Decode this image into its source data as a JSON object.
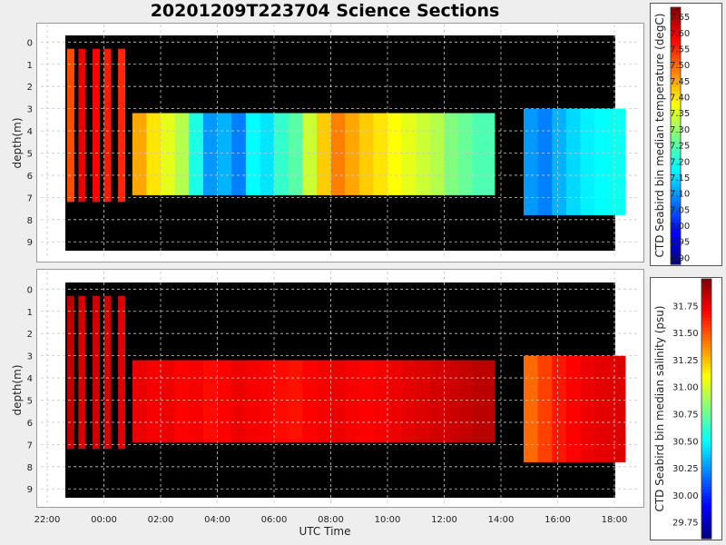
{
  "title": "20201209T223704 Science Sections",
  "xlabel": "UTC Time",
  "chart_data": [
    {
      "type": "heatmap",
      "name": "temperature-section",
      "ylabel": "depth(m)",
      "y_ticks": [
        "0",
        "1",
        "2",
        "3",
        "4",
        "5",
        "6",
        "7",
        "8",
        "9"
      ],
      "ylim": [
        9.4,
        -0.3
      ],
      "x_ticks": [
        "22:00",
        "00:00",
        "02:00",
        "04:00",
        "06:00",
        "08:00",
        "10:00",
        "12:00",
        "14:00",
        "16:00",
        "18:00"
      ],
      "xlim_hours": [
        -2.45,
        18.3
      ],
      "grid": true,
      "colorbar": {
        "label": "CTD Seabird bin median temperature (degC)",
        "min": 6.88,
        "max": 7.68,
        "ticks": [
          "6.90",
          "6.95",
          "7.00",
          "7.05",
          "7.10",
          "7.15",
          "7.20",
          "7.25",
          "7.30",
          "7.35",
          "7.40",
          "7.45",
          "7.50",
          "7.55",
          "7.60",
          "7.65"
        ],
        "tick_values": [
          6.9,
          6.95,
          7.0,
          7.05,
          7.1,
          7.15,
          7.2,
          7.25,
          7.3,
          7.35,
          7.4,
          7.45,
          7.5,
          7.55,
          7.6,
          7.65
        ]
      },
      "profiles": [
        {
          "t": -1.3,
          "value": 7.52
        },
        {
          "t": -0.9,
          "value": 7.6
        },
        {
          "t": -0.4,
          "value": 7.58
        },
        {
          "t": 0.0,
          "value": 7.56
        },
        {
          "t": 0.5,
          "value": 7.55
        },
        {
          "t": 1.0,
          "value": 7.45
        },
        {
          "t": 1.5,
          "value": 7.4
        },
        {
          "t": 2.0,
          "value": 7.36
        },
        {
          "t": 2.5,
          "value": 7.32
        },
        {
          "t": 3.0,
          "value": 7.2
        },
        {
          "t": 3.5,
          "value": 7.1
        },
        {
          "t": 4.0,
          "value": 7.12
        },
        {
          "t": 4.5,
          "value": 7.08
        },
        {
          "t": 5.0,
          "value": 7.18
        },
        {
          "t": 5.5,
          "value": 7.16
        },
        {
          "t": 6.0,
          "value": 7.22
        },
        {
          "t": 6.5,
          "value": 7.25
        },
        {
          "t": 7.0,
          "value": 7.34
        },
        {
          "t": 7.5,
          "value": 7.42
        },
        {
          "t": 8.0,
          "value": 7.48
        },
        {
          "t": 8.5,
          "value": 7.45
        },
        {
          "t": 9.0,
          "value": 7.42
        },
        {
          "t": 9.5,
          "value": 7.4
        },
        {
          "t": 10.0,
          "value": 7.38
        },
        {
          "t": 10.5,
          "value": 7.36
        },
        {
          "t": 11.0,
          "value": 7.34
        },
        {
          "t": 11.5,
          "value": 7.32
        },
        {
          "t": 12.0,
          "value": 7.28
        },
        {
          "t": 12.5,
          "value": 7.26
        },
        {
          "t": 13.0,
          "value": 7.24
        },
        {
          "t": 14.8,
          "value": 7.1
        },
        {
          "t": 15.3,
          "value": 7.08
        },
        {
          "t": 15.8,
          "value": 7.12
        },
        {
          "t": 16.3,
          "value": 7.15
        },
        {
          "t": 16.8,
          "value": 7.17
        },
        {
          "t": 17.3,
          "value": 7.18
        },
        {
          "t": 17.8,
          "value": 7.19
        }
      ]
    },
    {
      "type": "heatmap",
      "name": "salinity-section",
      "ylabel": "depth(m)",
      "y_ticks": [
        "0",
        "1",
        "2",
        "3",
        "4",
        "5",
        "6",
        "7",
        "8",
        "9"
      ],
      "ylim": [
        9.4,
        -0.3
      ],
      "x_ticks": [
        "22:00",
        "00:00",
        "02:00",
        "04:00",
        "06:00",
        "08:00",
        "10:00",
        "12:00",
        "14:00",
        "16:00",
        "18:00"
      ],
      "xlim_hours": [
        -2.45,
        18.3
      ],
      "grid": true,
      "colorbar": {
        "label": "CTD Seabird bin median salinity (psu)",
        "min": 29.6,
        "max": 32.0,
        "ticks": [
          "29.75",
          "30.00",
          "30.25",
          "30.50",
          "30.75",
          "31.00",
          "31.25",
          "31.50",
          "31.75"
        ],
        "tick_values": [
          29.75,
          30.0,
          30.25,
          30.5,
          30.75,
          31.0,
          31.25,
          31.5,
          31.75
        ]
      },
      "profiles": [
        {
          "t": -1.3,
          "value": 31.85
        },
        {
          "t": -0.9,
          "value": 31.8
        },
        {
          "t": -0.4,
          "value": 31.82
        },
        {
          "t": 0.0,
          "value": 31.8
        },
        {
          "t": 0.5,
          "value": 31.78
        },
        {
          "t": 1.0,
          "value": 31.75
        },
        {
          "t": 1.5,
          "value": 31.72
        },
        {
          "t": 2.0,
          "value": 31.74
        },
        {
          "t": 2.5,
          "value": 31.7
        },
        {
          "t": 3.0,
          "value": 31.72
        },
        {
          "t": 3.5,
          "value": 31.68
        },
        {
          "t": 4.0,
          "value": 31.7
        },
        {
          "t": 4.5,
          "value": 31.74
        },
        {
          "t": 5.0,
          "value": 31.72
        },
        {
          "t": 5.5,
          "value": 31.7
        },
        {
          "t": 6.0,
          "value": 31.68
        },
        {
          "t": 6.5,
          "value": 31.66
        },
        {
          "t": 7.0,
          "value": 31.7
        },
        {
          "t": 7.5,
          "value": 31.72
        },
        {
          "t": 8.0,
          "value": 31.74
        },
        {
          "t": 8.5,
          "value": 31.72
        },
        {
          "t": 9.0,
          "value": 31.7
        },
        {
          "t": 9.5,
          "value": 31.72
        },
        {
          "t": 10.0,
          "value": 31.74
        },
        {
          "t": 10.5,
          "value": 31.76
        },
        {
          "t": 11.0,
          "value": 31.78
        },
        {
          "t": 11.5,
          "value": 31.8
        },
        {
          "t": 12.0,
          "value": 31.82
        },
        {
          "t": 12.5,
          "value": 31.84
        },
        {
          "t": 13.0,
          "value": 31.86
        },
        {
          "t": 14.8,
          "value": 31.45
        },
        {
          "t": 15.3,
          "value": 31.55
        },
        {
          "t": 15.8,
          "value": 31.65
        },
        {
          "t": 16.3,
          "value": 31.7
        },
        {
          "t": 16.8,
          "value": 31.74
        },
        {
          "t": 17.3,
          "value": 31.76
        },
        {
          "t": 17.8,
          "value": 31.78
        }
      ]
    }
  ]
}
